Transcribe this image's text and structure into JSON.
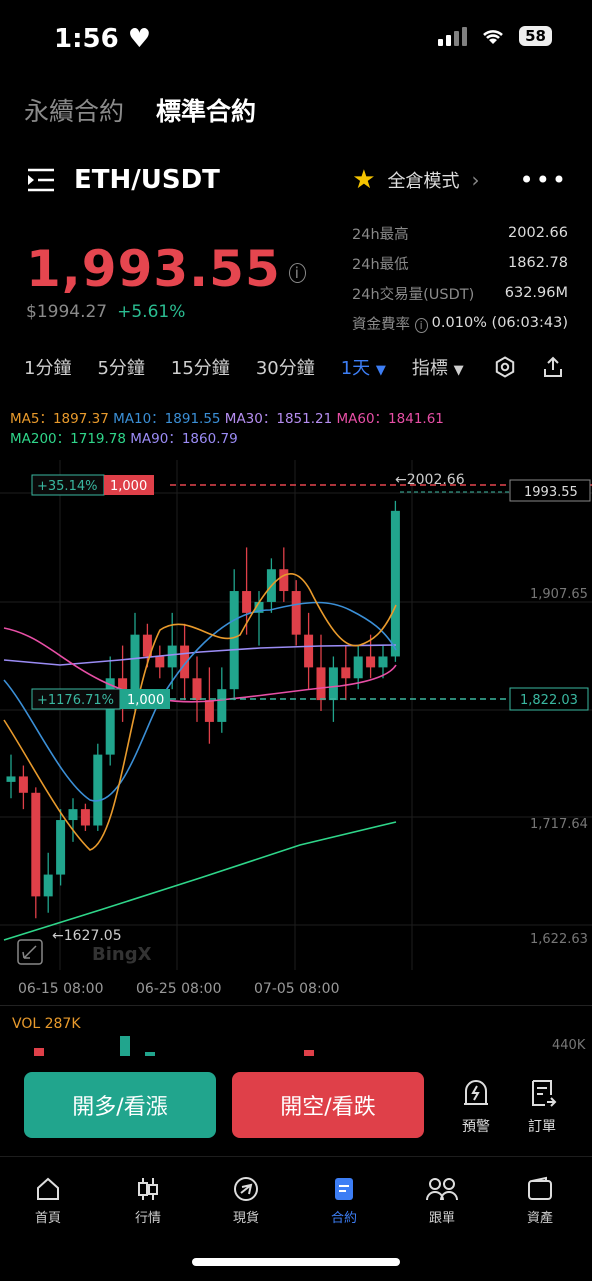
{
  "status": {
    "time": "1:56",
    "battery": "58"
  },
  "top_tabs": [
    "永續合約",
    "標準合約"
  ],
  "pair": {
    "name": "ETH/USDT",
    "mode": "全倉模式"
  },
  "price": {
    "last": "1,993.55",
    "usd": "$1994.27",
    "change": "+5.61%"
  },
  "stats": [
    {
      "k": "24h最高",
      "v": "2002.66"
    },
    {
      "k": "24h最低",
      "v": "1862.78"
    },
    {
      "k": "24h交易量(USDT)",
      "v": "632.96M"
    },
    {
      "k": "資金費率",
      "v": "0.010% (06:03:43)"
    }
  ],
  "timeframes": [
    "1分鐘",
    "5分鐘",
    "15分鐘",
    "30分鐘",
    "1天"
  ],
  "indicators_label": "指標",
  "ma": {
    "ma5": "MA5：1897.37",
    "ma10": "MA10：1891.55",
    "ma30": "MA30：1851.21",
    "ma60": "MA60：1841.61",
    "ma200": "MA200：1719.78",
    "ma90": "MA90：1860.79"
  },
  "colors": {
    "up": "#21a58d",
    "down": "#df4049",
    "ma5": "#e89a2c",
    "ma10": "#3b8fd6",
    "ma30": "#b58ef0",
    "ma60": "#e84fa6",
    "ma200": "#2fd68a",
    "ma90": "#9b8cf5",
    "accent": "#3d7ef5"
  },
  "chart_labels": {
    "tp_pct": "+35.14%",
    "tp_qty": "1,000",
    "sl_pct": "+1176.71%",
    "sl_qty": "1,000",
    "high_mark": "←2002.66",
    "low_mark": "←1627.05",
    "price_tag": "1993.55",
    "price_tag2": "1,822.03",
    "y1": "1,907.65",
    "y2": "1,717.64",
    "y3": "1,622.63",
    "x1": "06-15 08:00",
    "x2": "06-25 08:00",
    "x3": "07-05 08:00",
    "watermark": "BingX"
  },
  "volume": {
    "label": "VOL 287K",
    "max": "440K"
  },
  "buttons": {
    "long": "開多/看漲",
    "short": "開空/看跌",
    "alert": "預警",
    "orders": "訂單"
  },
  "nav": [
    "首頁",
    "行情",
    "現貨",
    "合約",
    "跟單",
    "資產"
  ],
  "chart_data": {
    "type": "candlestick",
    "candles": [
      [
        1745,
        1770,
        1730,
        1750
      ],
      [
        1750,
        1760,
        1720,
        1735
      ],
      [
        1735,
        1740,
        1620,
        1640
      ],
      [
        1640,
        1680,
        1625,
        1660
      ],
      [
        1660,
        1720,
        1650,
        1710
      ],
      [
        1710,
        1730,
        1690,
        1720
      ],
      [
        1720,
        1725,
        1700,
        1705
      ],
      [
        1705,
        1780,
        1700,
        1770
      ],
      [
        1770,
        1860,
        1760,
        1840
      ],
      [
        1840,
        1870,
        1800,
        1830
      ],
      [
        1830,
        1900,
        1810,
        1880
      ],
      [
        1880,
        1890,
        1850,
        1860
      ],
      [
        1860,
        1870,
        1840,
        1850
      ],
      [
        1850,
        1900,
        1830,
        1870
      ],
      [
        1870,
        1890,
        1820,
        1840
      ],
      [
        1840,
        1860,
        1800,
        1820
      ],
      [
        1820,
        1850,
        1780,
        1800
      ],
      [
        1800,
        1850,
        1790,
        1830
      ],
      [
        1830,
        1940,
        1820,
        1920
      ],
      [
        1920,
        1960,
        1880,
        1900
      ],
      [
        1900,
        1920,
        1870,
        1910
      ],
      [
        1910,
        1950,
        1900,
        1940
      ],
      [
        1940,
        1960,
        1910,
        1920
      ],
      [
        1920,
        1930,
        1870,
        1880
      ],
      [
        1880,
        1900,
        1830,
        1850
      ],
      [
        1850,
        1880,
        1810,
        1820
      ],
      [
        1820,
        1860,
        1800,
        1850
      ],
      [
        1850,
        1870,
        1820,
        1840
      ],
      [
        1840,
        1870,
        1830,
        1860
      ],
      [
        1860,
        1880,
        1840,
        1850
      ],
      [
        1850,
        1870,
        1840,
        1860
      ],
      [
        1860,
        2002.66,
        1855,
        1993.55
      ]
    ],
    "ylim": [
      1600,
      2020
    ]
  }
}
